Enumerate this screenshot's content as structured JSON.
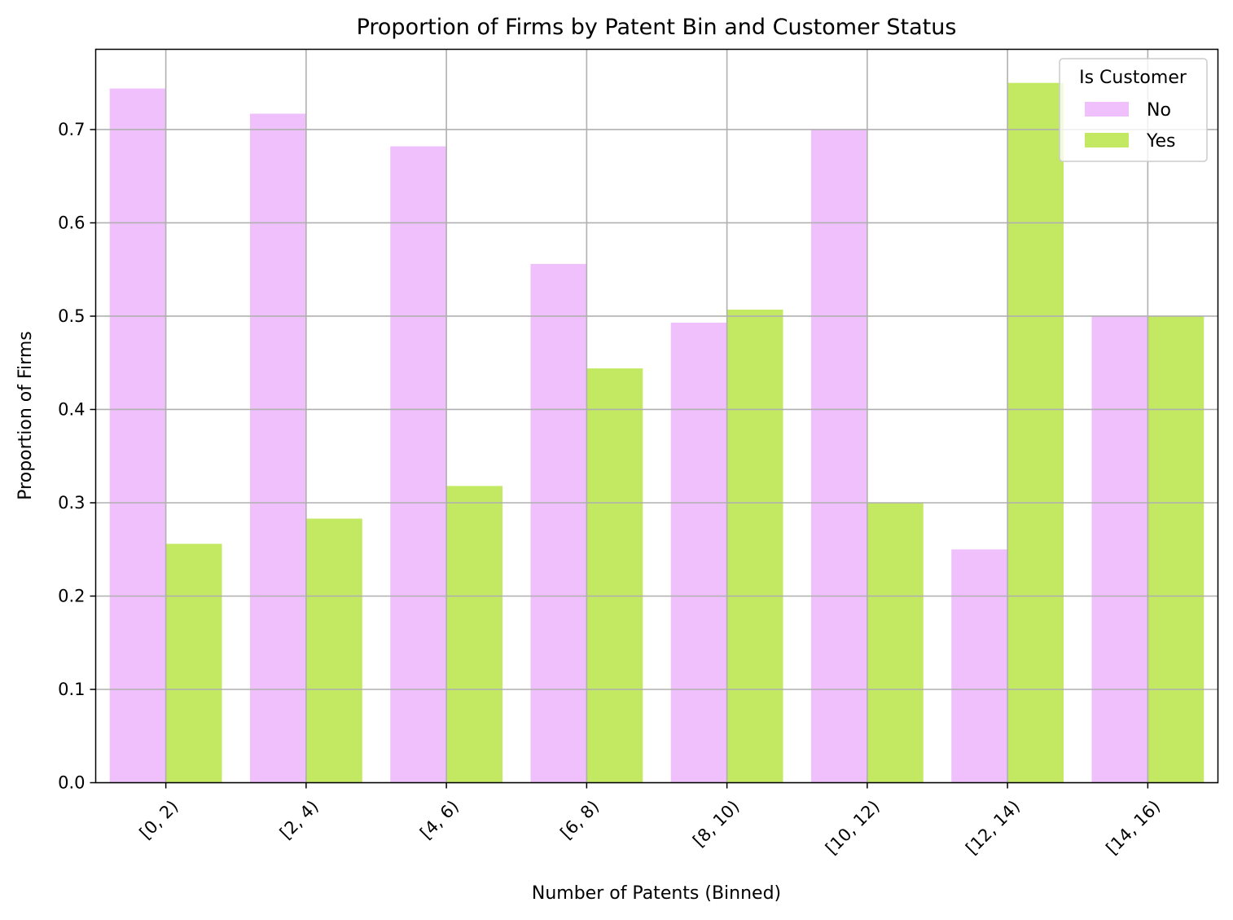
{
  "chart_data": {
    "type": "bar",
    "title": "Proportion of Firms by Patent Bin and Customer Status",
    "xlabel": "Number of Patents (Binned)",
    "ylabel": "Proportion of Firms",
    "categories": [
      "[0, 2)",
      "[2, 4)",
      "[4, 6)",
      "[6, 8)",
      "[8, 10)",
      "[10, 12)",
      "[12, 14)",
      "[14, 16)"
    ],
    "series": [
      {
        "name": "No",
        "color": "#efc0fc",
        "values": [
          0.744,
          0.717,
          0.682,
          0.556,
          0.493,
          0.7,
          0.25,
          0.5
        ]
      },
      {
        "name": "Yes",
        "color": "#c2e961",
        "values": [
          0.256,
          0.283,
          0.318,
          0.444,
          0.507,
          0.3,
          0.75,
          0.5
        ]
      }
    ],
    "ylim": [
      0,
      0.786
    ],
    "yticks": [
      0.0,
      0.1,
      0.2,
      0.3,
      0.4,
      0.5,
      0.6,
      0.7
    ],
    "ytick_labels": [
      "0.0",
      "0.1",
      "0.2",
      "0.3",
      "0.4",
      "0.5",
      "0.6",
      "0.7"
    ],
    "grid": true,
    "legend": {
      "title": "Is Customer",
      "position": "upper-right"
    },
    "xtick_rotation": 45
  }
}
